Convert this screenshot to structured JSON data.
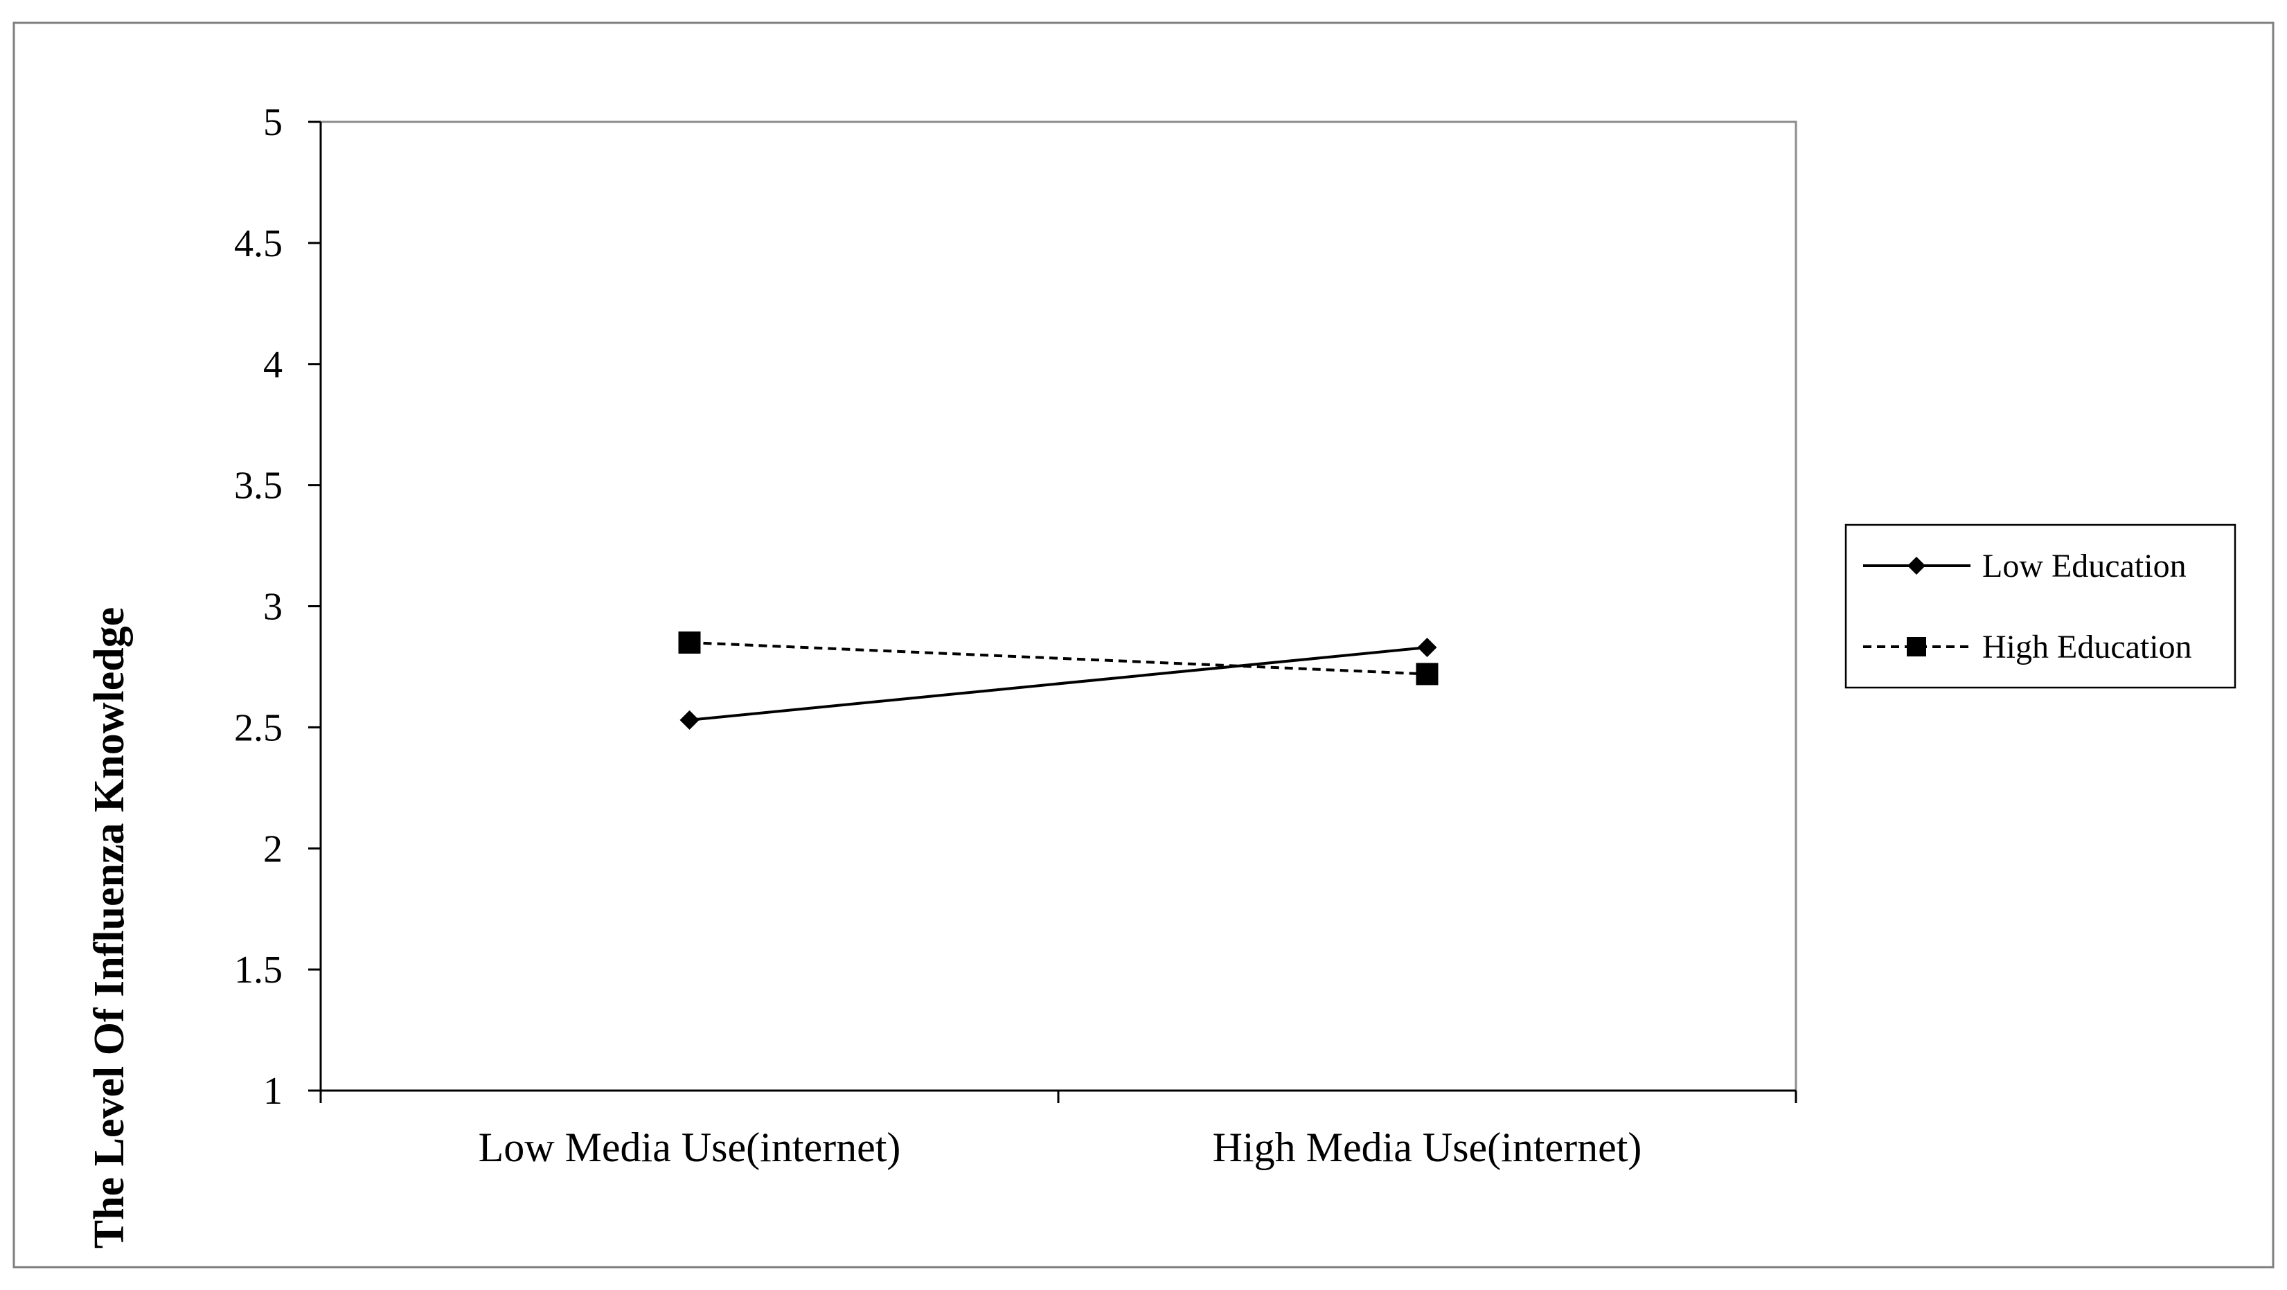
{
  "chart_data": {
    "type": "line",
    "categories": [
      "Low Media Use(internet)",
      "High Media Use(internet)"
    ],
    "series": [
      {
        "name": "Low Education",
        "values": [
          2.53,
          2.83
        ],
        "marker": "diamond",
        "line_style": "solid",
        "color": "#000000"
      },
      {
        "name": "High Education",
        "values": [
          2.85,
          2.72
        ],
        "marker": "square",
        "line_style": "dashed",
        "color": "#000000"
      }
    ],
    "title": "",
    "xlabel": "",
    "ylabel": "The Level Of Influenza  Knowledge",
    "ylim": [
      1,
      5
    ],
    "yticks": [
      "1",
      "1.5",
      "2",
      "2.5",
      "3",
      "3.5",
      "4",
      "4.5",
      "5"
    ],
    "grid": false,
    "legend_position": "right"
  }
}
